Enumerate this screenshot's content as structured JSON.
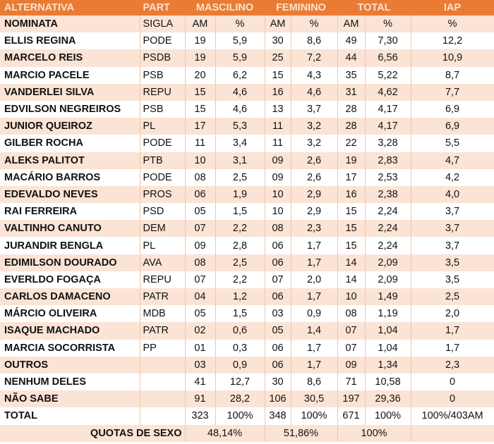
{
  "header": {
    "alternativa": "ALTERNATIVA",
    "part": "PART",
    "masculino": "MASCILINO",
    "feminino": "FEMININO",
    "total": "TOTAL",
    "iap": "IAP"
  },
  "subheader": [
    "NOMINATA",
    "SIGLA",
    "AM",
    "%",
    "AM",
    "%",
    "AM",
    "%",
    "%"
  ],
  "rows": [
    [
      "ELLIS REGINA",
      "PODE",
      "19",
      "5,9",
      "30",
      "8,6",
      "49",
      "7,30",
      "12,2"
    ],
    [
      "MARCELO REIS",
      "PSDB",
      "19",
      "5,9",
      "25",
      "7,2",
      "44",
      "6,56",
      "10,9"
    ],
    [
      "MARCIO PACELE",
      "PSB",
      "20",
      "6,2",
      "15",
      "4,3",
      "35",
      "5,22",
      "8,7"
    ],
    [
      "VANDERLEI SILVA",
      "REPU",
      "15",
      "4,6",
      "16",
      "4,6",
      "31",
      "4,62",
      "7,7"
    ],
    [
      "EDVILSON NEGREIROS",
      "PSB",
      "15",
      "4,6",
      "13",
      "3,7",
      "28",
      "4,17",
      "6,9"
    ],
    [
      "JUNIOR QUEIROZ",
      "PL",
      "17",
      "5,3",
      "11",
      "3,2",
      "28",
      "4,17",
      "6,9"
    ],
    [
      "GILBER ROCHA",
      "PODE",
      "11",
      "3,4",
      "11",
      "3,2",
      "22",
      "3,28",
      "5,5"
    ],
    [
      "ALEKS PALITOT",
      "PTB",
      "10",
      "3,1",
      "09",
      "2,6",
      "19",
      "2,83",
      "4,7"
    ],
    [
      "MACÁRIO BARROS",
      "PODE",
      "08",
      "2,5",
      "09",
      "2,6",
      "17",
      "2,53",
      "4,2"
    ],
    [
      "EDEVALDO NEVES",
      "PROS",
      "06",
      "1,9",
      "10",
      "2,9",
      "16",
      "2,38",
      "4,0"
    ],
    [
      "RAI FERREIRA",
      "PSD",
      "05",
      "1,5",
      "10",
      "2,9",
      "15",
      "2,24",
      "3,7"
    ],
    [
      "VALTINHO CANUTO",
      "DEM",
      "07",
      "2,2",
      "08",
      "2,3",
      "15",
      "2,24",
      "3,7"
    ],
    [
      "JURANDIR BENGLA",
      "PL",
      "09",
      "2,8",
      "06",
      "1,7",
      "15",
      "2,24",
      "3,7"
    ],
    [
      "EDIMILSON DOURADO",
      "AVA",
      "08",
      "2,5",
      "06",
      "1,7",
      "14",
      "2,09",
      "3,5"
    ],
    [
      "EVERLDO FOGAÇA",
      "REPU",
      "07",
      "2,2",
      "07",
      "2,0",
      "14",
      "2,09",
      "3,5"
    ],
    [
      "CARLOS DAMACENO",
      "PATR",
      "04",
      "1,2",
      "06",
      "1,7",
      "10",
      "1,49",
      "2,5"
    ],
    [
      "MÁRCIO OLIVEIRA",
      "MDB",
      "05",
      "1,5",
      "03",
      "0,9",
      "08",
      "1,19",
      "2,0"
    ],
    [
      "ISAQUE MACHADO",
      "PATR",
      "02",
      "0,6",
      "05",
      "1,4",
      "07",
      "1,04",
      "1,7"
    ],
    [
      "MARCIA SOCORRISTA",
      "PP",
      "01",
      "0,3",
      "06",
      "1,7",
      "07",
      "1,04",
      "1,7"
    ],
    [
      "OUTROS",
      "",
      "03",
      "0,9",
      "06",
      "1,7",
      "09",
      "1,34",
      "2,3"
    ],
    [
      "NENHUM DELES",
      "",
      "41",
      "12,7",
      "30",
      "8,6",
      "71",
      "10,58",
      "0"
    ],
    [
      "NÃO SABE",
      "",
      "91",
      "28,2",
      "106",
      "30,5",
      "197",
      "29,36",
      "0"
    ],
    [
      "TOTAL",
      "",
      "323",
      "100%",
      "348",
      "100%",
      "671",
      "100%",
      "100%/403AM"
    ]
  ],
  "quotas": {
    "label": "QUOTAS DE SEXO",
    "masculino": "48,14%",
    "feminino": "51,86%",
    "total": "100%"
  },
  "colors": {
    "header": "#ea7b34",
    "stripe": "#fbe4d5"
  }
}
